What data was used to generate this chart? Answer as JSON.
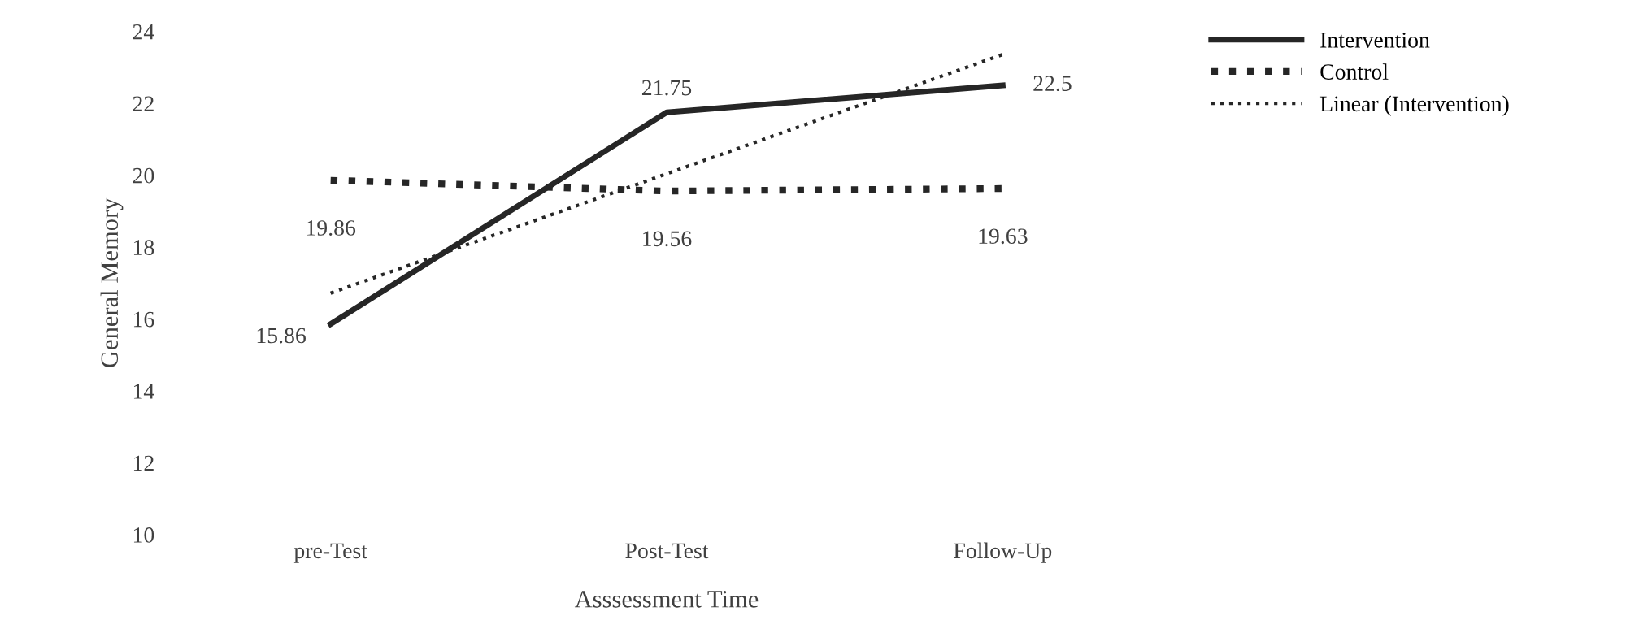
{
  "chart_data": {
    "type": "line",
    "xlabel": "Asssessment Time",
    "ylabel": "General Memory",
    "categories": [
      "pre-Test",
      "Post-Test",
      "Follow-Up"
    ],
    "series": [
      {
        "name": "Intervention",
        "color": "#262626",
        "line_style": "solid",
        "values": [
          15.86,
          21.75,
          22.5
        ],
        "value_labels": [
          "15.86",
          "21.75",
          "22.5"
        ]
      },
      {
        "name": "Control",
        "color": "#262626",
        "line_style": "dotted",
        "values": [
          19.86,
          19.56,
          19.63
        ],
        "value_labels": [
          "19.86",
          "19.56",
          "19.63"
        ]
      },
      {
        "name": "Linear (Intervention)",
        "color": "#262626",
        "line_style": "dotted",
        "values": [
          16.72,
          20.04,
          23.36
        ]
      }
    ],
    "ylim": [
      10,
      24
    ],
    "yticks": [
      10,
      12,
      14,
      16,
      18,
      20,
      22,
      24
    ],
    "grid": false,
    "legend": "right",
    "marker": "none"
  }
}
